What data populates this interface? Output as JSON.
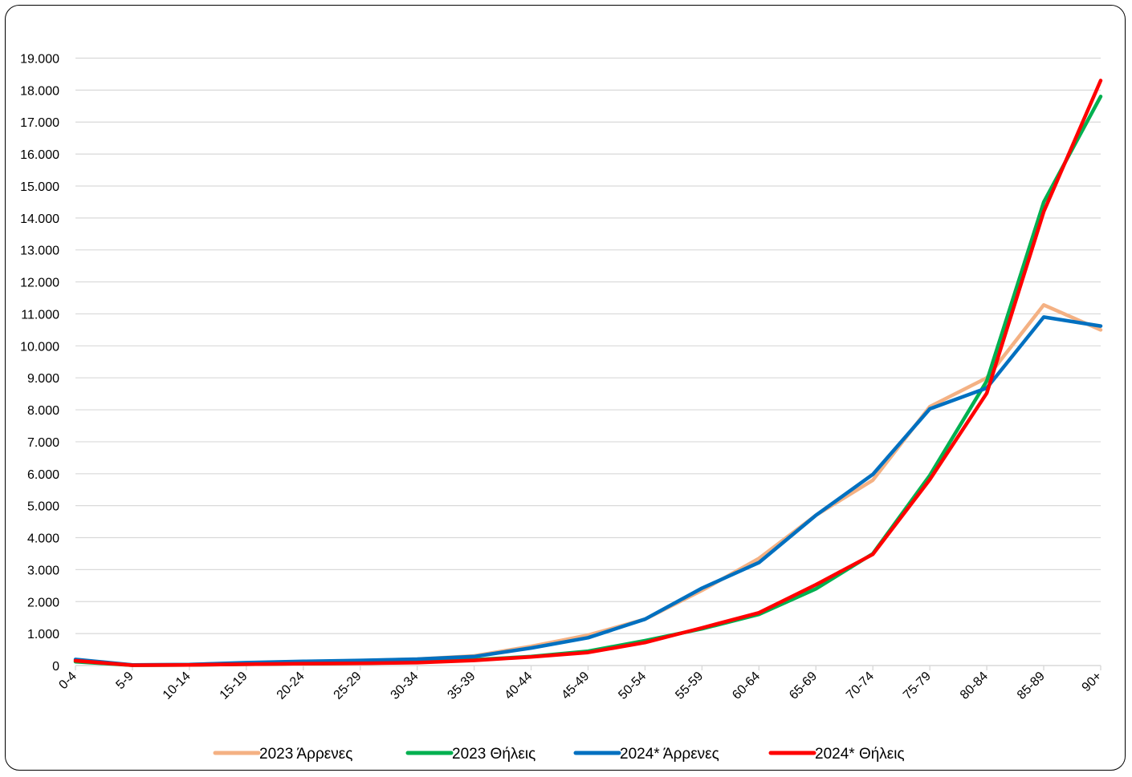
{
  "chart_data": {
    "type": "line",
    "title": "",
    "xlabel": "",
    "ylabel": "",
    "categories": [
      "0-4",
      "5-9",
      "10-14",
      "15-19",
      "20-24",
      "25-29",
      "30-34",
      "35-39",
      "40-44",
      "45-49",
      "50-54",
      "55-59",
      "60-64",
      "65-69",
      "70-74",
      "75-79",
      "80-84",
      "85-89",
      "90+"
    ],
    "ylim": [
      0,
      19000
    ],
    "yticks": [
      0,
      1000,
      2000,
      3000,
      4000,
      5000,
      6000,
      7000,
      8000,
      9000,
      10000,
      11000,
      12000,
      13000,
      14000,
      15000,
      16000,
      17000,
      18000,
      19000
    ],
    "ytick_labels": [
      "0",
      "1.000",
      "2.000",
      "3.000",
      "4.000",
      "5.000",
      "6.000",
      "7.000",
      "8.000",
      "9.000",
      "10.000",
      "11.000",
      "12.000",
      "13.000",
      "14.000",
      "15.000",
      "16.000",
      "17.000",
      "18.000",
      "19.000"
    ],
    "grid": true,
    "legend_position": "bottom",
    "series": [
      {
        "name": "2023 Άρρενες",
        "color": "#F4B183",
        "values": [
          150,
          20,
          30,
          80,
          120,
          150,
          200,
          300,
          600,
          950,
          1450,
          2350,
          3350,
          4700,
          5800,
          8100,
          9000,
          11280,
          10500
        ]
      },
      {
        "name": "2023 Θήλεις",
        "color": "#00B050",
        "values": [
          120,
          10,
          20,
          40,
          60,
          70,
          100,
          180,
          280,
          450,
          780,
          1150,
          1600,
          2400,
          3500,
          5950,
          8900,
          14500,
          17800
        ]
      },
      {
        "name": "2024* Άρρενες",
        "color": "#0070C0",
        "values": [
          190,
          20,
          30,
          90,
          130,
          160,
          200,
          280,
          550,
          870,
          1450,
          2420,
          3220,
          4700,
          5980,
          8030,
          8680,
          10900,
          10620
        ]
      },
      {
        "name": "2024* Θήλεις",
        "color": "#FF0000",
        "values": [
          150,
          10,
          20,
          40,
          60,
          70,
          90,
          160,
          270,
          410,
          720,
          1180,
          1650,
          2530,
          3480,
          5820,
          8520,
          14200,
          18300
        ]
      }
    ]
  }
}
